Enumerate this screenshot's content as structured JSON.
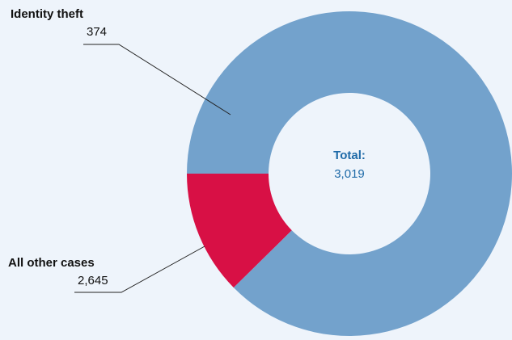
{
  "chart_data": {
    "type": "pie",
    "style": "donut",
    "title": "",
    "categories": [
      "Identity theft",
      "All other cases"
    ],
    "value_labels": [
      "374",
      "2,645"
    ],
    "values": [
      374,
      2645
    ],
    "colors": [
      "#d81045",
      "#73a2cc"
    ],
    "center": {
      "title": "Total:",
      "value": "3,019",
      "color": "#1e6aa8"
    },
    "background": "#eef4fb",
    "leader_line_color": "#222222"
  }
}
